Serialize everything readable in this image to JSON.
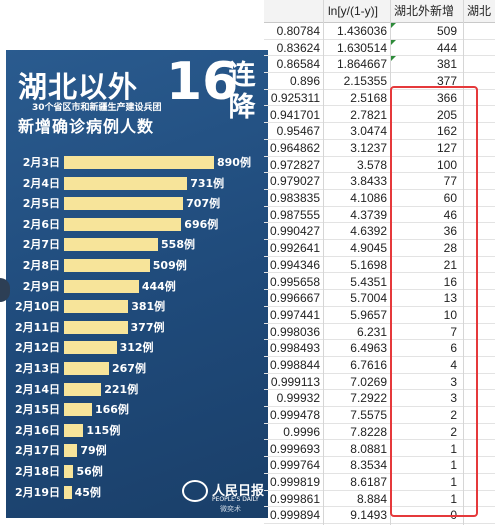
{
  "poster": {
    "headline": "湖北以外",
    "number": "16",
    "tail": "连降",
    "subtitle": "30个省区市和新疆生产建设兵团",
    "subtitle2": "新增确诊病例人数",
    "logo_text": "人民日报",
    "logo_sub": "PEOPLE'S DAILY",
    "watermark": "微奕术",
    "bar_color": "#f7e49a",
    "background": "#1f4a7a"
  },
  "chart_data": {
    "type": "bar",
    "orientation": "horizontal",
    "categories": [
      "2月3日",
      "2月4日",
      "2月5日",
      "2月6日",
      "2月7日",
      "2月8日",
      "2月9日",
      "2月10日",
      "2月11日",
      "2月12日",
      "2月13日",
      "2月14日",
      "2月15日",
      "2月16日",
      "2月17日",
      "2月18日",
      "2月19日"
    ],
    "values": [
      890,
      731,
      707,
      696,
      558,
      509,
      444,
      381,
      377,
      312,
      267,
      221,
      166,
      115,
      79,
      56,
      45
    ],
    "value_labels": [
      "890例",
      "731例",
      "707例",
      "696例",
      "558例",
      "509例",
      "444例",
      "381例",
      "377例",
      "312例",
      "267例",
      "221例",
      "166例",
      "115例",
      "79例",
      "56例",
      "45例"
    ],
    "xlim": [
      0,
      890
    ]
  },
  "sheet": {
    "headers": [
      "",
      "ln[y/(1-y)]",
      "湖北外新增",
      "湖北"
    ],
    "rows": [
      [
        "0.80784",
        "1.436036",
        "509"
      ],
      [
        "0.83624",
        "1.630514",
        "444"
      ],
      [
        "0.86584",
        "1.864667",
        "381"
      ],
      [
        "0.896",
        "2.15355",
        "377"
      ],
      [
        "0.925311",
        "2.5168",
        "366"
      ],
      [
        "0.941701",
        "2.7821",
        "205"
      ],
      [
        "0.95467",
        "3.0474",
        "162"
      ],
      [
        "0.964862",
        "3.1237",
        "127"
      ],
      [
        "0.972827",
        "3.578",
        "100"
      ],
      [
        "0.979027",
        "3.8433",
        "77"
      ],
      [
        "0.983835",
        "4.1086",
        "60"
      ],
      [
        "0.987555",
        "4.3739",
        "46"
      ],
      [
        "0.990427",
        "4.6392",
        "36"
      ],
      [
        "0.992641",
        "4.9045",
        "28"
      ],
      [
        "0.994346",
        "5.1698",
        "21"
      ],
      [
        "0.995658",
        "5.4351",
        "16"
      ],
      [
        "0.996667",
        "5.7004",
        "13"
      ],
      [
        "0.997441",
        "5.9657",
        "10"
      ],
      [
        "0.998036",
        "6.231",
        "7"
      ],
      [
        "0.998493",
        "6.4963",
        "6"
      ],
      [
        "0.998844",
        "6.7616",
        "4"
      ],
      [
        "0.999113",
        "7.0269",
        "3"
      ],
      [
        "0.99932",
        "7.2922",
        "3"
      ],
      [
        "0.999478",
        "7.5575",
        "2"
      ],
      [
        "0.9996",
        "7.8228",
        "2"
      ],
      [
        "0.999693",
        "8.0881",
        "1"
      ],
      [
        "0.999764",
        "8.3534",
        "1"
      ],
      [
        "0.999819",
        "8.6187",
        "1"
      ],
      [
        "0.999861",
        "8.884",
        "1"
      ],
      [
        "0.999894",
        "9.1493",
        "0"
      ]
    ],
    "highlight_color": "#e5393b"
  }
}
